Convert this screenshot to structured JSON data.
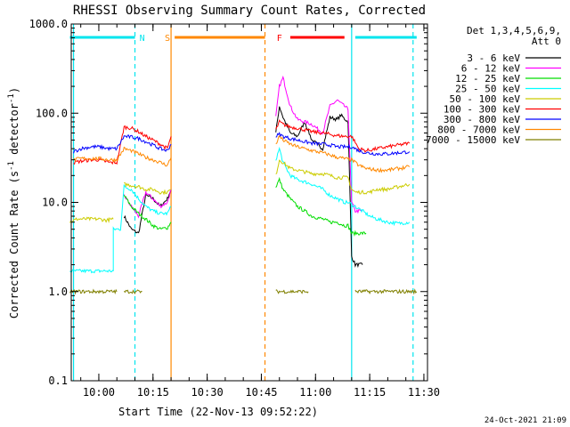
{
  "chart_data": {
    "type": "line",
    "title": "RHESSI Observing Summary Count Rates, Corrected",
    "xlabel": "Start Time (22-Nov-13 09:52:22)",
    "ylabel_prefix": "Corrected Count Rate (s",
    "ylabel_sup1": "-1",
    "ylabel_mid": " detector",
    "ylabel_sup2": "-1",
    "ylabel_suffix": ")",
    "y_scale": "log",
    "ylim": [
      0.1,
      1000
    ],
    "xlim": [
      "09:52:22",
      "11:31:00"
    ],
    "grid": false,
    "legend_position": "right",
    "date_stamp": "24-Oct-2021 21:09",
    "legend_header": [
      "Det 1,3,4,5,6,9,",
      "Att 0"
    ],
    "y_ticks": [
      {
        "value": 0.1,
        "label": "0.1"
      },
      {
        "value": 1,
        "label": "1.0"
      },
      {
        "value": 10,
        "label": "10.0"
      },
      {
        "value": 100,
        "label": "100.0"
      },
      {
        "value": 1000,
        "label": "1000.0"
      }
    ],
    "x_ticks": [
      {
        "value": "10:00",
        "label": "10:00"
      },
      {
        "value": "10:15",
        "label": "10:15"
      },
      {
        "value": "10:30",
        "label": "10:30"
      },
      {
        "value": "10:45",
        "label": "10:45"
      },
      {
        "value": "11:00",
        "label": "11:00"
      },
      {
        "value": "11:15",
        "label": "11:15"
      },
      {
        "value": "11:30",
        "label": "11:30"
      }
    ],
    "series": [
      {
        "name": "3 - 6 keV",
        "color": "#000000",
        "segments": [
          {
            "x": [
              "10:07",
              "10:09",
              "10:11",
              "10:13",
              "10:15",
              "10:17",
              "10:19",
              "10:20"
            ],
            "y": [
              7,
              5,
              4.5,
              12,
              11,
              9,
              11,
              14
            ]
          },
          {
            "x": [
              "10:49",
              "10:50",
              "10:51",
              "10:53",
              "10:55",
              "10:57",
              "10:59",
              "11:02",
              "11:04",
              "11:06",
              "11:07",
              "11:09",
              "11:10",
              "11:11",
              "11:13"
            ],
            "y": [
              60,
              120,
              90,
              60,
              55,
              80,
              50,
              40,
              90,
              85,
              95,
              80,
              2.5,
              2,
              2
            ]
          }
        ]
      },
      {
        "name": "6 - 12 keV",
        "color": "#ff00ff",
        "segments": [
          {
            "x": [
              "10:07",
              "10:09",
              "10:11",
              "10:13",
              "10:15",
              "10:17",
              "10:19",
              "10:20"
            ],
            "y": [
              12,
              9,
              7,
              13,
              11,
              9,
              10,
              14
            ]
          },
          {
            "x": [
              "10:49",
              "10:50",
              "10:51",
              "10:53",
              "10:55",
              "10:57",
              "10:59",
              "11:02",
              "11:04",
              "11:06",
              "11:08",
              "11:09",
              "11:10",
              "11:11",
              "11:13"
            ],
            "y": [
              90,
              200,
              250,
              120,
              85,
              80,
              75,
              60,
              120,
              140,
              120,
              110,
              10,
              8,
              8
            ]
          }
        ]
      },
      {
        "name": "12 - 25 keV",
        "color": "#00dd00",
        "segments": [
          {
            "x": [
              "10:07",
              "10:09",
              "10:11",
              "10:13",
              "10:15",
              "10:17",
              "10:19",
              "10:20"
            ],
            "y": [
              12,
              9,
              7.5,
              6.5,
              5.5,
              5,
              5.2,
              6
            ]
          },
          {
            "x": [
              "10:49",
              "10:50",
              "10:51",
              "10:53",
              "10:55",
              "10:57",
              "10:59",
              "11:02",
              "11:04",
              "11:06",
              "11:08",
              "11:09",
              "11:10",
              "11:12",
              "11:14"
            ],
            "y": [
              15,
              18,
              14,
              11,
              9,
              8,
              7,
              6.5,
              6,
              6,
              5.5,
              5.5,
              4.5,
              4.5,
              4.5
            ]
          }
        ]
      },
      {
        "name": "25 - 50 keV",
        "color": "#00ffff",
        "segments": [
          {
            "x": [
              "09:52",
              "10:00",
              "10:00",
              "10:04",
              "10:04",
              "10:06",
              "10:07",
              "10:09",
              "10:11",
              "10:13",
              "10:15",
              "10:17",
              "10:19",
              "10:20"
            ],
            "y": [
              1.7,
              1.7,
              1.7,
              1.7,
              5,
              5,
              15,
              14,
              11,
              9,
              8,
              7.5,
              7.5,
              9
            ]
          },
          {
            "x": [
              "10:49",
              "10:50",
              "10:51",
              "10:53",
              "10:55",
              "10:57",
              "10:59",
              "11:02",
              "11:04",
              "11:06",
              "11:08",
              "11:09",
              "11:10",
              "11:11",
              "11:13",
              "11:15",
              "11:17",
              "11:20",
              "11:23",
              "11:26"
            ],
            "y": [
              30,
              40,
              28,
              20,
              18,
              17,
              16,
              14,
              12,
              11,
              10,
              10,
              9.5,
              9,
              8,
              7,
              6.5,
              6,
              5.8,
              6
            ]
          }
        ]
      },
      {
        "name": "50 - 100 keV",
        "color": "#cccc00",
        "segments": [
          {
            "x": [
              "09:52",
              "09:54",
              "09:57",
              "10:00",
              "10:02",
              "10:04"
            ],
            "y": [
              6,
              6.5,
              6.5,
              6.5,
              6.3,
              6.5
            ]
          },
          {
            "x": [
              "10:07",
              "10:09",
              "10:11",
              "10:13",
              "10:15",
              "10:17",
              "10:19",
              "10:20"
            ],
            "y": [
              16,
              15.5,
              15,
              14,
              14,
              13,
              13,
              14
            ]
          },
          {
            "x": [
              "10:49",
              "10:50",
              "10:51",
              "10:53",
              "10:55",
              "10:57",
              "10:59",
              "11:02",
              "11:04",
              "11:06",
              "11:08",
              "11:09",
              "11:10",
              "11:11",
              "11:13",
              "11:15",
              "11:17",
              "11:20",
              "11:23",
              "11:26"
            ],
            "y": [
              20,
              30,
              28,
              24,
              23,
              22,
              21,
              21,
              20,
              19,
              19,
              19,
              14,
              13,
              13,
              13,
              14,
              14,
              15,
              16
            ]
          }
        ]
      },
      {
        "name": "100 - 300 keV",
        "color": "#ff0000",
        "segments": [
          {
            "x": [
              "09:53",
              "09:55",
              "09:58",
              "10:00",
              "10:03",
              "10:05",
              "10:07",
              "10:09",
              "10:11",
              "10:13",
              "10:15",
              "10:17",
              "10:19",
              "10:20"
            ],
            "y": [
              28,
              29,
              30,
              30,
              28,
              28,
              70,
              68,
              62,
              55,
              50,
              45,
              40,
              55
            ]
          },
          {
            "x": [
              "10:49",
              "10:50",
              "10:51",
              "10:53",
              "10:55",
              "10:57",
              "10:59",
              "11:02",
              "11:04",
              "11:06",
              "11:08",
              "11:10",
              "11:12",
              "11:14",
              "11:17",
              "11:20",
              "11:23",
              "11:26"
            ],
            "y": [
              65,
              80,
              75,
              70,
              68,
              65,
              62,
              60,
              58,
              56,
              55,
              55,
              40,
              38,
              40,
              42,
              44,
              46
            ]
          }
        ]
      },
      {
        "name": "300 - 800 keV",
        "color": "#0000ff",
        "segments": [
          {
            "x": [
              "09:53",
              "09:55",
              "09:58",
              "10:00",
              "10:03",
              "10:05",
              "10:07",
              "10:09",
              "10:11",
              "10:13",
              "10:15",
              "10:17",
              "10:19",
              "10:20"
            ],
            "y": [
              37,
              40,
              42,
              42,
              40,
              40,
              55,
              54,
              52,
              48,
              44,
              40,
              38,
              45
            ]
          },
          {
            "x": [
              "10:49",
              "10:50",
              "10:51",
              "10:53",
              "10:55",
              "10:57",
              "10:59",
              "11:02",
              "11:04",
              "11:06",
              "11:08",
              "11:10",
              "11:12",
              "11:14",
              "11:17",
              "11:20",
              "11:23",
              "11:26"
            ],
            "y": [
              55,
              58,
              55,
              52,
              50,
              48,
              46,
              45,
              44,
              42,
              42,
              42,
              38,
              36,
              35,
              35,
              36,
              37
            ]
          }
        ]
      },
      {
        "name": "800 - 7000 keV",
        "color": "#ff8800",
        "segments": [
          {
            "x": [
              "09:53",
              "09:55",
              "09:58",
              "10:00",
              "10:03",
              "10:05",
              "10:07",
              "10:09",
              "10:11",
              "10:13",
              "10:15",
              "10:17",
              "10:19",
              "10:20"
            ],
            "y": [
              30,
              31,
              31,
              31,
              30,
              30,
              40,
              38,
              35,
              32,
              30,
              28,
              26,
              32
            ]
          },
          {
            "x": [
              "10:49",
              "10:50",
              "10:51",
              "10:53",
              "10:55",
              "10:57",
              "10:59",
              "11:02",
              "11:04",
              "11:06",
              "11:08",
              "11:10",
              "11:12",
              "11:14",
              "11:17",
              "11:20",
              "11:23",
              "11:26"
            ],
            "y": [
              45,
              55,
              50,
              45,
              42,
              40,
              38,
              36,
              34,
              32,
              31,
              30,
              26,
              24,
              23,
              23,
              24,
              25
            ]
          }
        ]
      },
      {
        "name": "7000 - 15000 keV",
        "color": "#808000",
        "segments": [
          {
            "x": [
              "09:52",
              "10:05"
            ],
            "y": [
              1,
              1
            ]
          },
          {
            "x": [
              "10:07",
              "10:12"
            ],
            "y": [
              1,
              1
            ]
          },
          {
            "x": [
              "10:49",
              "10:58"
            ],
            "y": [
              1,
              1
            ]
          },
          {
            "x": [
              "11:11",
              "11:28"
            ],
            "y": [
              1,
              1
            ]
          }
        ]
      }
    ],
    "state_bars": [
      {
        "label": "",
        "color": "#00e5ee",
        "from": "09:52",
        "to": "10:10"
      },
      {
        "label": "N",
        "color": "#00e5ee",
        "at": "10:12"
      },
      {
        "label": "S",
        "color": "#ff8800",
        "from": "10:21",
        "to": "10:46",
        "label_at": "10:19"
      },
      {
        "label": "F",
        "color": "#ff0000",
        "from": "10:53",
        "to": "11:08",
        "label_at": "10:50"
      },
      {
        "label": "",
        "color": "#00e5ee",
        "from": "11:11",
        "to": "11:28"
      }
    ],
    "event_lines": [
      {
        "at": "09:53",
        "color": "#00e5ee",
        "style": "solid"
      },
      {
        "at": "10:10",
        "color": "#00e5ee",
        "style": "dashed"
      },
      {
        "at": "10:20",
        "color": "#ff8800",
        "style": "solid"
      },
      {
        "at": "10:46",
        "color": "#ff8800",
        "style": "dashed"
      },
      {
        "at": "11:10",
        "color": "#00e5ee",
        "style": "solid"
      },
      {
        "at": "11:27",
        "color": "#00e5ee",
        "style": "dashed"
      }
    ]
  }
}
